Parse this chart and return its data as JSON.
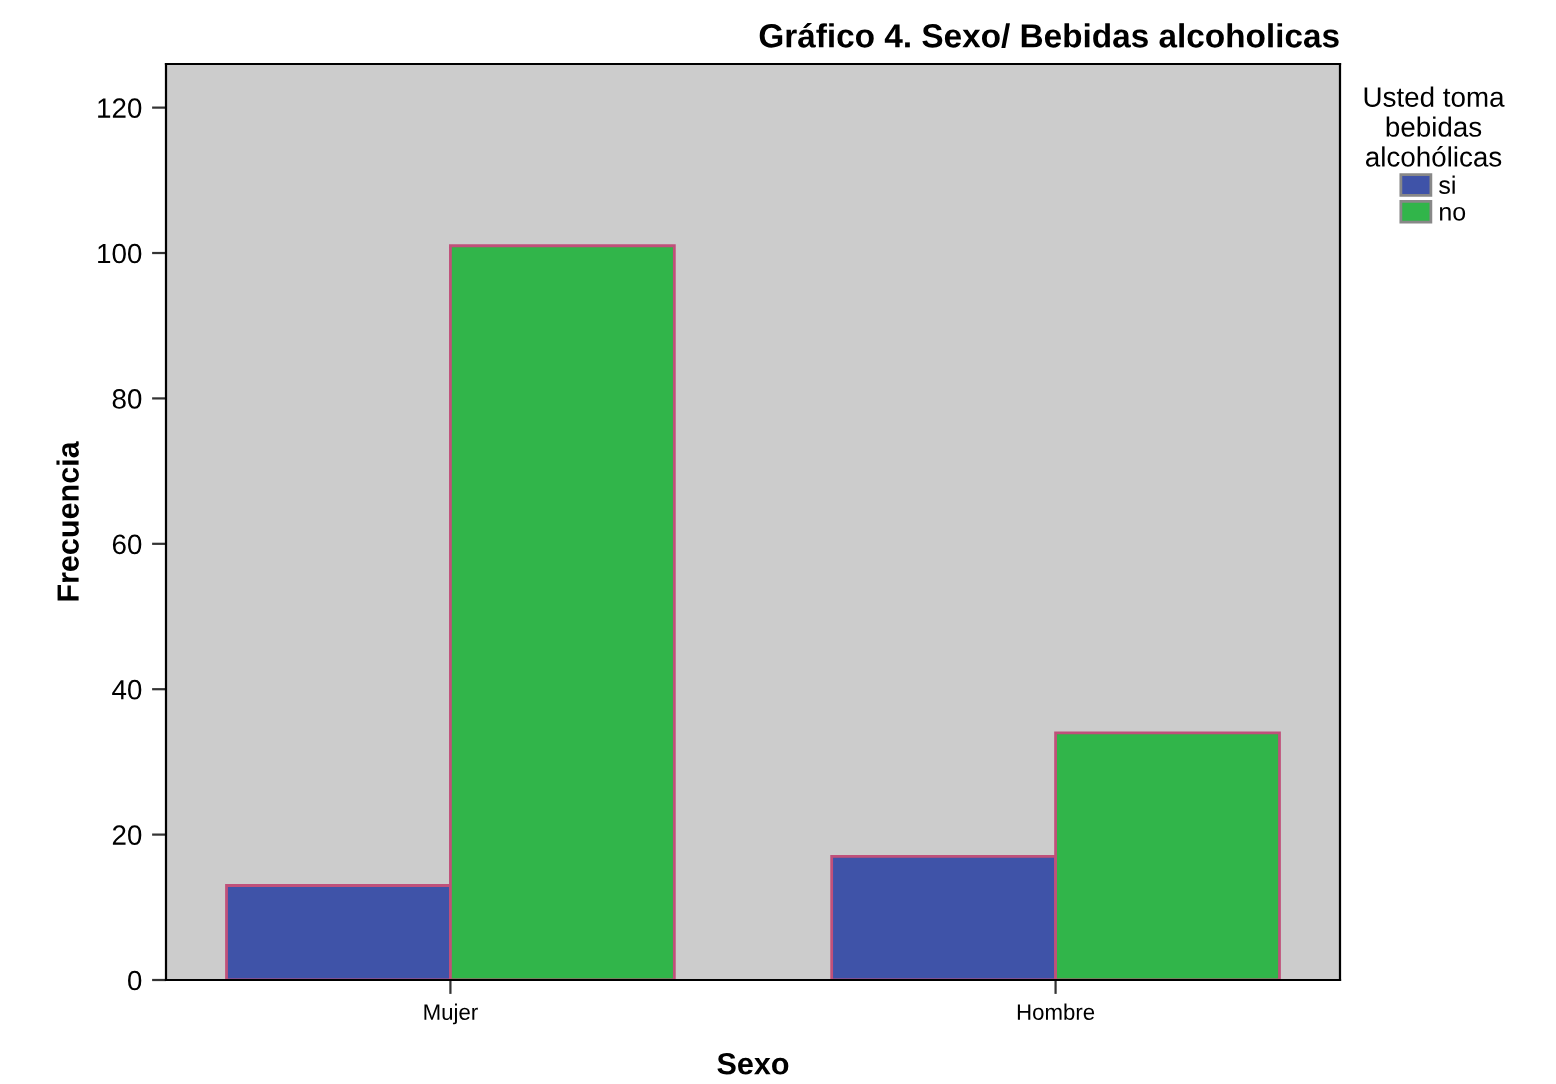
{
  "chart_data": {
    "type": "bar",
    "title": "Gráfico 4. Sexo/ Bebidas alcoholicas",
    "xlabel": "Sexo",
    "ylabel": "Frecuencia",
    "legend_title": "Usted toma\nbebidas\nalcohólicas",
    "categories": [
      "Mujer",
      "Hombre"
    ],
    "series": [
      {
        "name": "si",
        "color": "#3f53a8",
        "values": [
          13,
          17
        ]
      },
      {
        "name": "no",
        "color": "#31b54a",
        "values": [
          101,
          34
        ]
      }
    ],
    "ylim": [
      0,
      126
    ],
    "yticks": [
      0,
      20,
      40,
      60,
      80,
      100,
      120
    ],
    "grid": false,
    "legend": "top right"
  }
}
